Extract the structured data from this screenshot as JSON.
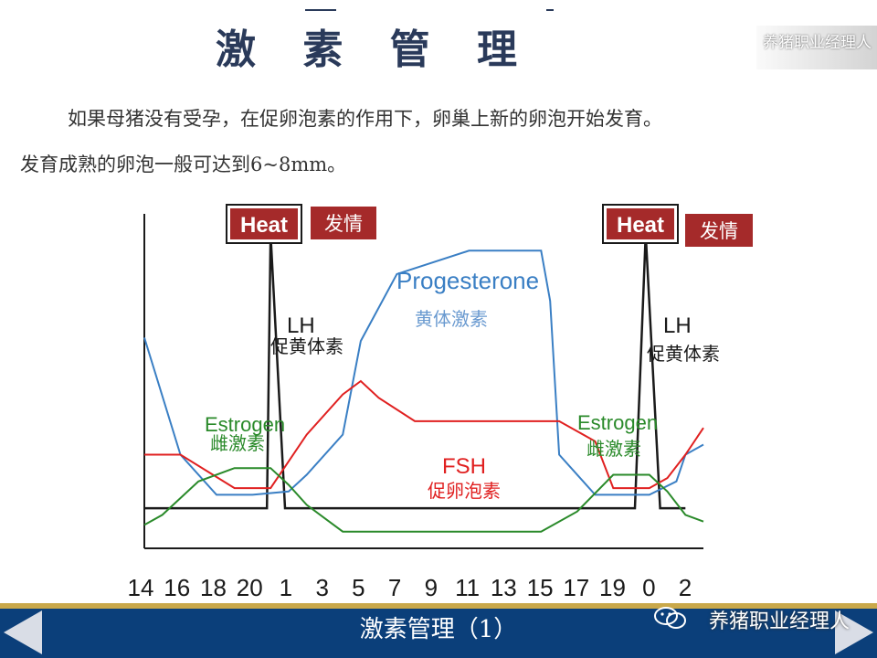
{
  "page": {
    "title": "激 素 管 理",
    "watermark": "养猪职业经理人",
    "paragraph_line1": "如果母猪没有受孕，在促卵泡素的作用下，卵巢上新的卵泡开始发育。",
    "paragraph_line2": "发育成熟的卵泡一般可达到6~8mm。",
    "footer_title": "激素管理（1）",
    "footer_watermark": "养猪职业经理人"
  },
  "colors": {
    "lh": "#1a1a1a",
    "progesterone": "#3a7fc4",
    "fsh": "#e02020",
    "estrogen": "#2a8a2a",
    "heat_box": "#a52a2a",
    "footer": "#0b3f7a"
  },
  "chart_data": {
    "type": "line",
    "xlabel": "",
    "ylabel": "",
    "categories": [
      "14",
      "16",
      "18",
      "20",
      "1",
      "3",
      "5",
      "7",
      "9",
      "11",
      "13",
      "15",
      "17",
      "19",
      "0",
      "2"
    ],
    "x": [
      14,
      15,
      16,
      17,
      18,
      19,
      20,
      21,
      1,
      2,
      3,
      4,
      5,
      6,
      7,
      8,
      9,
      10,
      11,
      12,
      13,
      14,
      15,
      16,
      17,
      18,
      19,
      20,
      21,
      0,
      1,
      2,
      3
    ],
    "ylim": [
      0,
      1
    ],
    "grid": false,
    "series": [
      {
        "name": "LH",
        "name_cn": "促黄体素",
        "color_key": "lh",
        "points": [
          [
            0,
            0.12
          ],
          [
            6.8,
            0.12
          ],
          [
            7,
            0.94
          ],
          [
            7.8,
            0.12
          ],
          [
            27.2,
            0.12
          ],
          [
            27.8,
            0.94
          ],
          [
            28.6,
            0.12
          ],
          [
            30,
            0.12
          ]
        ]
      },
      {
        "name": "Progesterone",
        "name_cn": "黄体激素",
        "color_key": "progesterone",
        "points": [
          [
            0,
            0.63
          ],
          [
            2,
            0.28
          ],
          [
            4,
            0.16
          ],
          [
            6,
            0.16
          ],
          [
            8,
            0.17
          ],
          [
            9,
            0.22
          ],
          [
            11,
            0.34
          ],
          [
            12,
            0.62
          ],
          [
            14,
            0.82
          ],
          [
            18,
            0.89
          ],
          [
            21,
            0.89
          ],
          [
            22,
            0.89
          ],
          [
            22.5,
            0.74
          ],
          [
            23,
            0.28
          ],
          [
            25,
            0.16
          ],
          [
            27,
            0.16
          ],
          [
            28,
            0.16
          ],
          [
            29.5,
            0.2
          ],
          [
            30,
            0.28
          ],
          [
            31,
            0.31
          ]
        ]
      },
      {
        "name": "FSH",
        "name_cn": "促卵泡素",
        "color_key": "fsh",
        "points": [
          [
            0,
            0.28
          ],
          [
            2,
            0.28
          ],
          [
            5,
            0.18
          ],
          [
            7,
            0.18
          ],
          [
            9,
            0.34
          ],
          [
            11,
            0.46
          ],
          [
            12,
            0.5
          ],
          [
            13,
            0.45
          ],
          [
            15,
            0.38
          ],
          [
            18,
            0.38
          ],
          [
            22,
            0.38
          ],
          [
            23,
            0.38
          ],
          [
            25,
            0.32
          ],
          [
            26,
            0.18
          ],
          [
            28,
            0.18
          ],
          [
            29,
            0.21
          ],
          [
            30,
            0.28
          ],
          [
            31,
            0.36
          ]
        ]
      },
      {
        "name": "Estrogen",
        "name_cn": "雌激素",
        "color_key": "estrogen",
        "points": [
          [
            0,
            0.07
          ],
          [
            1,
            0.1
          ],
          [
            3,
            0.2
          ],
          [
            5,
            0.24
          ],
          [
            7,
            0.24
          ],
          [
            8,
            0.19
          ],
          [
            9,
            0.13
          ],
          [
            10,
            0.09
          ],
          [
            11,
            0.05
          ],
          [
            14,
            0.05
          ],
          [
            20,
            0.05
          ],
          [
            22,
            0.05
          ],
          [
            24,
            0.11
          ],
          [
            26,
            0.22
          ],
          [
            28,
            0.22
          ],
          [
            29,
            0.17
          ],
          [
            30,
            0.1
          ],
          [
            31,
            0.08
          ]
        ]
      }
    ],
    "annotations": {
      "heat_label": "Heat",
      "heat_cn": "发情",
      "lh_label": "LH",
      "lh_cn": "促黄体素",
      "progesterone_label": "Progesterone",
      "progesterone_cn": "黄体激素",
      "fsh_label": "FSH",
      "fsh_cn": "促卵泡素",
      "estrogen_label": "Estrogen",
      "estrogen_cn": "雌激素"
    }
  }
}
